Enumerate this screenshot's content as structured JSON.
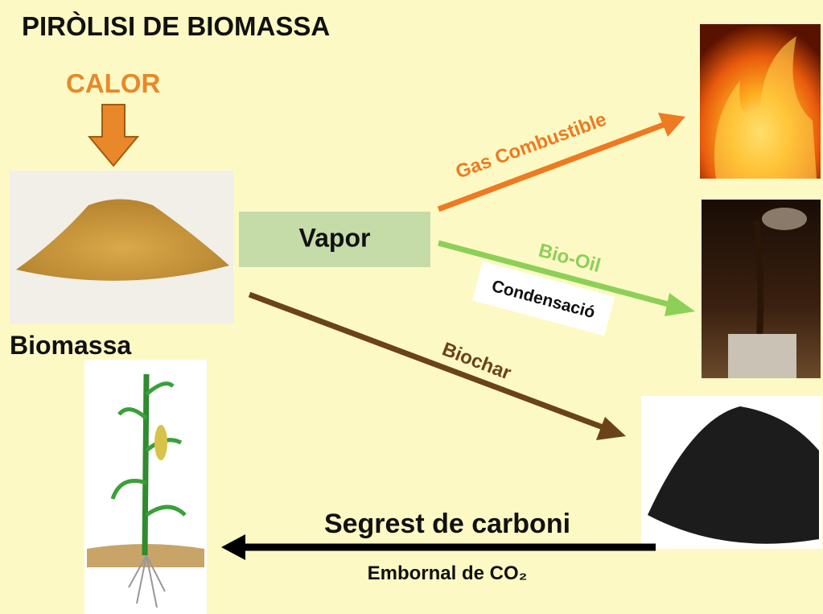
{
  "title": "PIRÒLISI DE BIOMASSA",
  "heat_label": "CALOR",
  "feedstock_label": "Biomassa",
  "vapor_label": "Vapor",
  "products": {
    "gas": "Gas Combustible",
    "oil": "Bio-Oil",
    "condensation": "Condensació",
    "biochar": "Biochar"
  },
  "sequestration": {
    "title": "Segrest de carboni",
    "subtitle": "Embornal de CO₂"
  }
}
